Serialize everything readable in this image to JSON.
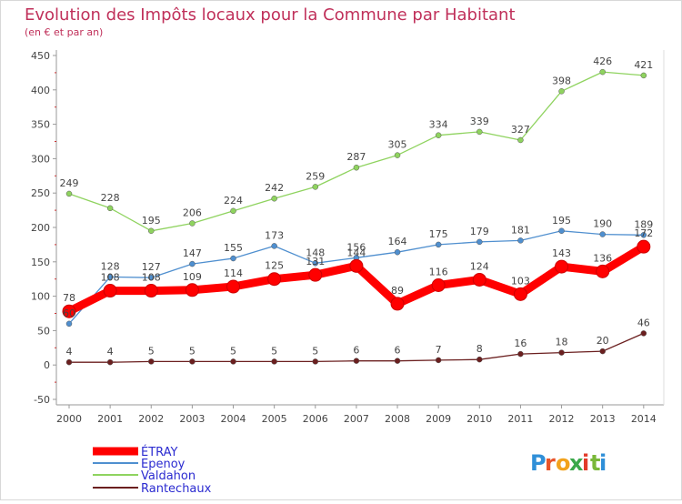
{
  "chart_data": {
    "type": "line",
    "title": "Evolution des Impôts locaux pour la Commune par Habitant",
    "subtitle": "(en € et par an)",
    "x": [
      "2000",
      "2001",
      "2002",
      "2003",
      "2004",
      "2005",
      "2006",
      "2007",
      "2008",
      "2009",
      "2010",
      "2011",
      "2012",
      "2013",
      "2014"
    ],
    "ylim": [
      -50,
      450
    ],
    "yticks": [
      -50,
      0,
      50,
      100,
      150,
      200,
      250,
      300,
      350,
      400,
      450
    ],
    "grid": false,
    "legend_position": "bottom-left",
    "series": [
      {
        "name": "ÉTRAY",
        "color": "#ff0000",
        "values": [
          78,
          108,
          108,
          109,
          114,
          125,
          131,
          144,
          89,
          116,
          124,
          103,
          143,
          136,
          172
        ]
      },
      {
        "name": "Epenoy",
        "color": "#4f8fcf",
        "values": [
          60,
          128,
          127,
          147,
          155,
          173,
          148,
          156,
          164,
          175,
          179,
          181,
          195,
          190,
          189
        ]
      },
      {
        "name": "Valdahon",
        "color": "#8fd35f",
        "values": [
          249,
          228,
          195,
          206,
          224,
          242,
          259,
          287,
          305,
          334,
          339,
          327,
          398,
          426,
          421
        ]
      },
      {
        "name": "Rantechaux",
        "color": "#6b1f1f",
        "values": [
          4,
          4,
          5,
          5,
          5,
          5,
          5,
          6,
          6,
          7,
          8,
          16,
          18,
          20,
          46
        ]
      }
    ],
    "data_labels": {
      "ÉTRAY": [
        "78",
        "108",
        "108",
        "109",
        "114",
        "125",
        "131",
        "144",
        "89",
        "116",
        "124",
        "103",
        "143",
        "136",
        "172"
      ],
      "Epenoy": [
        "60",
        "128",
        "127",
        "147",
        "155",
        "173",
        "148",
        "156",
        "164",
        "175",
        "179",
        "181",
        "195",
        "190",
        "189"
      ],
      "Valdahon": [
        "249",
        "228",
        "195",
        "206",
        "224",
        "242",
        "259",
        "287",
        "305",
        "334",
        "339",
        "327",
        "398",
        "426",
        "421"
      ],
      "Rantechaux": [
        "4",
        "4",
        "5",
        "5",
        "5",
        "5",
        "5",
        "6",
        "6",
        "7",
        "8",
        "16",
        "18",
        "20",
        "46"
      ]
    }
  },
  "brand": {
    "letters": [
      "P",
      "r",
      "o",
      "x",
      "i",
      "t",
      "i"
    ],
    "colors": [
      "#2f8fd8",
      "#e8542a",
      "#f2a21c",
      "#3aa84a",
      "#e23a2a",
      "#7ab83a",
      "#2f8fd8"
    ]
  }
}
